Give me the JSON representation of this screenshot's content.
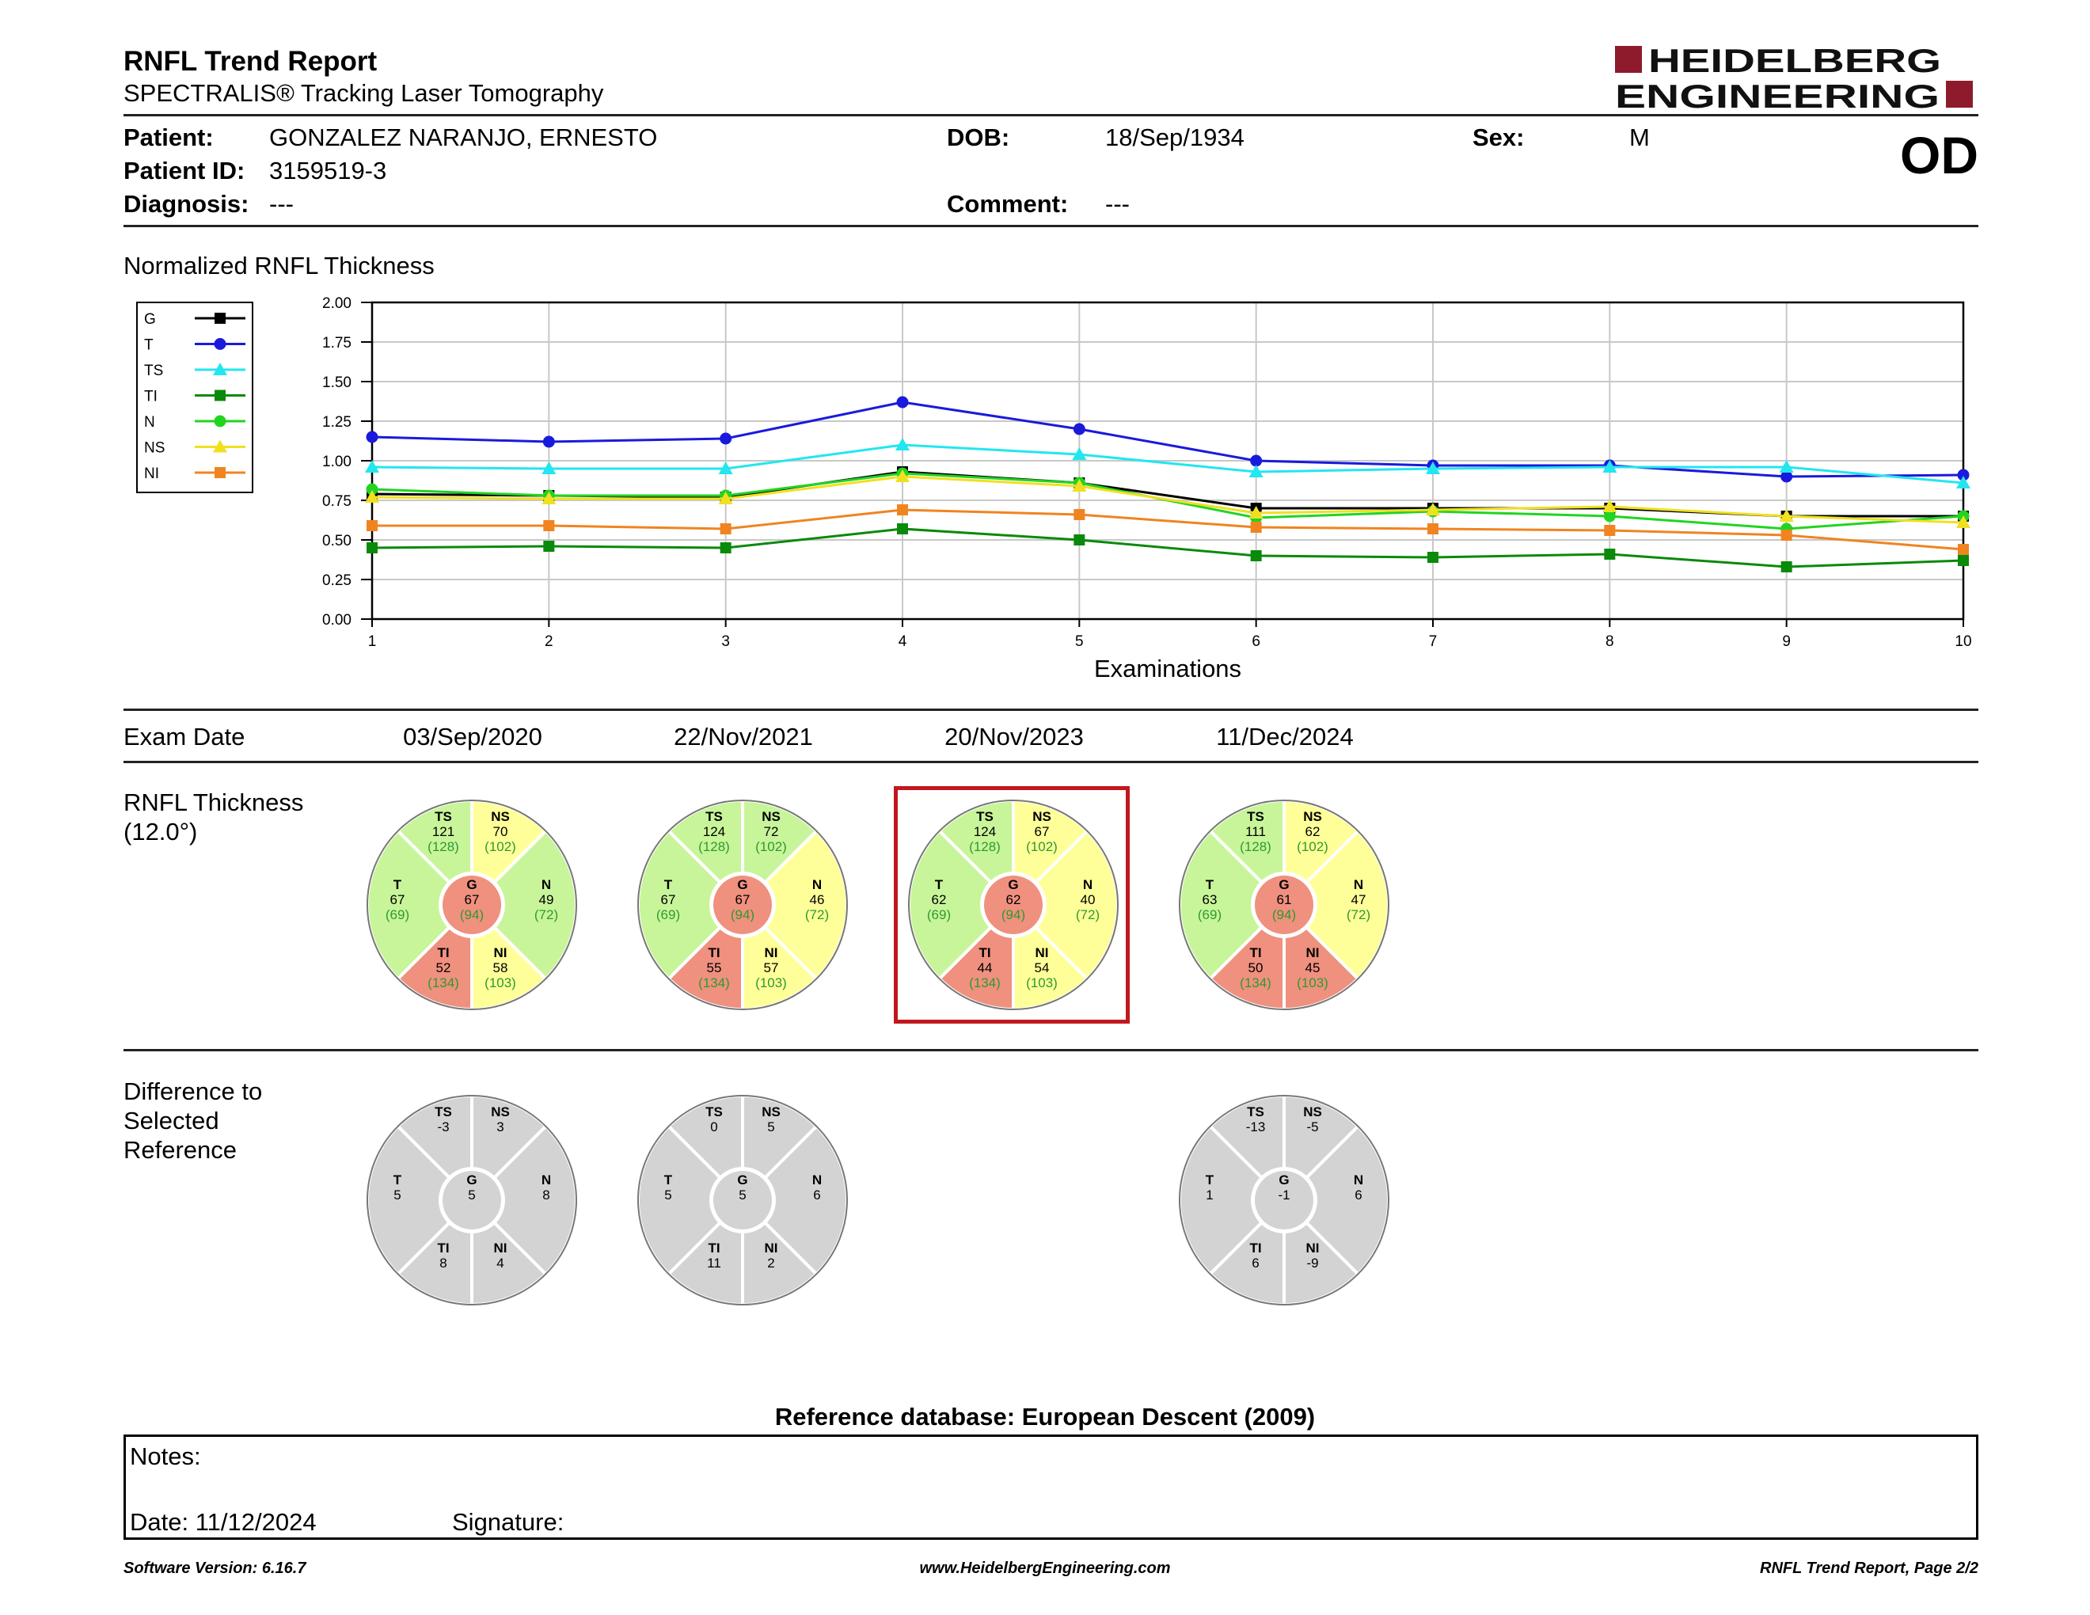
{
  "header": {
    "title": "RNFL Trend Report",
    "subtitle": "SPECTRALIS® Tracking Laser Tomography",
    "logo_line1": "HEIDELBERG",
    "logo_line2": "ENGINEERING",
    "eye": "OD"
  },
  "patient": {
    "name_label": "Patient:",
    "name": "GONZALEZ NARANJO, ERNESTO",
    "id_label": "Patient ID:",
    "id": "3159519-3",
    "diagnosis_label": "Diagnosis:",
    "diagnosis": "---",
    "dob_label": "DOB:",
    "dob": "18/Sep/1934",
    "comment_label": "Comment:",
    "comment": "---",
    "sex_label": "Sex:",
    "sex": "M"
  },
  "chart_data": {
    "type": "line",
    "title": "Normalized RNFL Thickness",
    "xlabel": "Examinations",
    "ylabel": "",
    "x": [
      1,
      2,
      3,
      4,
      5,
      6,
      7,
      8,
      9,
      10
    ],
    "ylim": [
      0,
      2
    ],
    "yticks": [
      "0.00",
      "0.25",
      "0.50",
      "0.75",
      "1.00",
      "1.25",
      "1.50",
      "1.75",
      "2.00"
    ],
    "grid": true,
    "legend_position": "left",
    "series": [
      {
        "name": "G",
        "color": "#000000",
        "marker": "square",
        "values": [
          0.79,
          0.78,
          0.77,
          0.93,
          0.86,
          0.7,
          0.7,
          0.7,
          0.65,
          0.65
        ]
      },
      {
        "name": "T",
        "color": "#1a1adc",
        "marker": "circle",
        "values": [
          1.15,
          1.12,
          1.14,
          1.37,
          1.2,
          1.0,
          0.97,
          0.97,
          0.9,
          0.91
        ]
      },
      {
        "name": "TS",
        "color": "#22e6f0",
        "marker": "triangle",
        "values": [
          0.96,
          0.95,
          0.95,
          1.1,
          1.04,
          0.93,
          0.95,
          0.96,
          0.96,
          0.86
        ]
      },
      {
        "name": "TI",
        "color": "#0a8a0a",
        "marker": "square",
        "values": [
          0.45,
          0.46,
          0.45,
          0.57,
          0.5,
          0.4,
          0.39,
          0.41,
          0.33,
          0.37
        ]
      },
      {
        "name": "N",
        "color": "#22d422",
        "marker": "circle",
        "values": [
          0.82,
          0.78,
          0.78,
          0.92,
          0.86,
          0.64,
          0.68,
          0.65,
          0.57,
          0.65
        ]
      },
      {
        "name": "NS",
        "color": "#f0e020",
        "marker": "triangle",
        "values": [
          0.77,
          0.76,
          0.76,
          0.9,
          0.84,
          0.67,
          0.69,
          0.71,
          0.65,
          0.61
        ]
      },
      {
        "name": "NI",
        "color": "#f08420",
        "marker": "square",
        "values": [
          0.59,
          0.59,
          0.57,
          0.69,
          0.66,
          0.58,
          0.57,
          0.56,
          0.53,
          0.44
        ]
      }
    ]
  },
  "exams": {
    "row_label": "Exam Date",
    "dates": [
      "03/Sep/2020",
      "22/Nov/2021",
      "20/Nov/2023",
      "11/Dec/2024"
    ]
  },
  "thickness": {
    "label_line1": "RNFL Thickness",
    "label_line2": "(12.0°)",
    "selected_index": 2,
    "colors": {
      "green": "#c8f59a",
      "yellow": "#ffff99",
      "red": "#f0907f"
    },
    "wheels": [
      {
        "TS": {
          "v": "121",
          "n": "(128)",
          "c": "green"
        },
        "NS": {
          "v": "70",
          "n": "(102)",
          "c": "yellow"
        },
        "T": {
          "v": "67",
          "n": "(69)",
          "c": "green"
        },
        "N": {
          "v": "49",
          "n": "(72)",
          "c": "green"
        },
        "TI": {
          "v": "52",
          "n": "(134)",
          "c": "red"
        },
        "NI": {
          "v": "58",
          "n": "(103)",
          "c": "yellow"
        },
        "G": {
          "v": "67",
          "n": "(94)",
          "c": "red"
        }
      },
      {
        "TS": {
          "v": "124",
          "n": "(128)",
          "c": "green"
        },
        "NS": {
          "v": "72",
          "n": "(102)",
          "c": "green"
        },
        "T": {
          "v": "67",
          "n": "(69)",
          "c": "green"
        },
        "N": {
          "v": "46",
          "n": "(72)",
          "c": "yellow"
        },
        "TI": {
          "v": "55",
          "n": "(134)",
          "c": "red"
        },
        "NI": {
          "v": "57",
          "n": "(103)",
          "c": "yellow"
        },
        "G": {
          "v": "67",
          "n": "(94)",
          "c": "red"
        }
      },
      {
        "TS": {
          "v": "124",
          "n": "(128)",
          "c": "green"
        },
        "NS": {
          "v": "67",
          "n": "(102)",
          "c": "yellow"
        },
        "T": {
          "v": "62",
          "n": "(69)",
          "c": "green"
        },
        "N": {
          "v": "40",
          "n": "(72)",
          "c": "yellow"
        },
        "TI": {
          "v": "44",
          "n": "(134)",
          "c": "red"
        },
        "NI": {
          "v": "54",
          "n": "(103)",
          "c": "yellow"
        },
        "G": {
          "v": "62",
          "n": "(94)",
          "c": "red"
        }
      },
      {
        "TS": {
          "v": "111",
          "n": "(128)",
          "c": "green"
        },
        "NS": {
          "v": "62",
          "n": "(102)",
          "c": "yellow"
        },
        "T": {
          "v": "63",
          "n": "(69)",
          "c": "green"
        },
        "N": {
          "v": "47",
          "n": "(72)",
          "c": "yellow"
        },
        "TI": {
          "v": "50",
          "n": "(134)",
          "c": "red"
        },
        "NI": {
          "v": "45",
          "n": "(103)",
          "c": "red"
        },
        "G": {
          "v": "61",
          "n": "(94)",
          "c": "red"
        }
      }
    ]
  },
  "difference": {
    "label_line1": "Difference to",
    "label_line2": "Selected",
    "label_line3": "Reference",
    "color": "#d3d3d3",
    "wheels": [
      {
        "exam_index": 0,
        "TS": "-3",
        "NS": "3",
        "T": "5",
        "N": "8",
        "TI": "8",
        "NI": "4",
        "G": "5"
      },
      {
        "exam_index": 1,
        "TS": "0",
        "NS": "5",
        "T": "5",
        "N": "6",
        "TI": "11",
        "NI": "2",
        "G": "5"
      },
      {
        "exam_index": 3,
        "TS": "-13",
        "NS": "-5",
        "T": "1",
        "N": "6",
        "TI": "6",
        "NI": "-9",
        "G": "-1"
      }
    ]
  },
  "reference_db": "Reference database: European Descent (2009)",
  "notes": {
    "notes_label": "Notes:",
    "date_label": "Date: 11/12/2024",
    "signature_label": "Signature:"
  },
  "footer": {
    "left": "Software Version: 6.16.7",
    "center": "www.HeidelbergEngineering.com",
    "right": "RNFL Trend Report, Page 2/2"
  }
}
